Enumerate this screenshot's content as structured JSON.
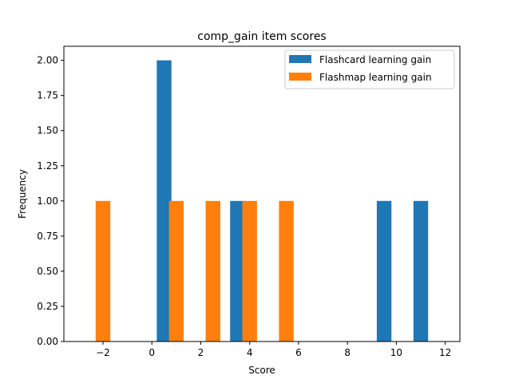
{
  "chart_data": {
    "type": "bar",
    "title": "comp_gain item scores",
    "xlabel": "Score",
    "ylabel": "Frequency",
    "xlim": [
      -3.6,
      12.6
    ],
    "ylim": [
      0,
      2.1
    ],
    "xticks": [
      -2,
      0,
      2,
      4,
      6,
      8,
      10,
      12
    ],
    "xtick_labels": [
      "−2",
      "0",
      "2",
      "4",
      "6",
      "8",
      "10",
      "12"
    ],
    "yticks": [
      0,
      0.25,
      0.5,
      0.75,
      1.0,
      1.25,
      1.5,
      1.75,
      2.0
    ],
    "ytick_labels": [
      "0.00",
      "0.25",
      "0.50",
      "0.75",
      "1.00",
      "1.25",
      "1.50",
      "1.75",
      "2.00"
    ],
    "bar_width": 0.6,
    "grid": false,
    "legend_position": "top-right",
    "series": [
      {
        "name": "Flashcard learning gain",
        "color": "#1f77b4",
        "x": [
          0.5,
          3.5,
          9.5,
          11.0
        ],
        "values": [
          2,
          1,
          1,
          1
        ]
      },
      {
        "name": "Flashmap learning gain",
        "color": "#ff7f0e",
        "x": [
          -2.0,
          1.0,
          2.5,
          4.0,
          5.5
        ],
        "values": [
          1,
          1,
          1,
          1,
          1
        ]
      }
    ]
  }
}
